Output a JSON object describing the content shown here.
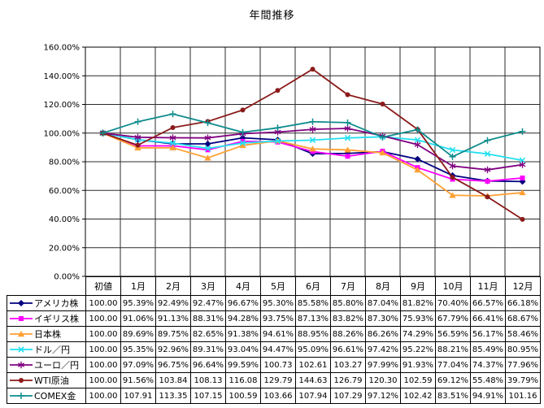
{
  "chart_data": {
    "type": "line",
    "title": "年間推移",
    "xlabel": "",
    "ylabel": "",
    "grid": true,
    "legend_position": "data-table-left",
    "categories": [
      "初値",
      "1月",
      "2月",
      "3月",
      "4月",
      "5月",
      "6月",
      "7月",
      "8月",
      "9月",
      "10月",
      "11月",
      "12月"
    ],
    "y_axis": {
      "min": 0,
      "max": 160,
      "step": 20,
      "tick_labels": [
        "0.00%",
        "20.00%",
        "40.00%",
        "60.00%",
        "80.00%",
        "100.00%",
        "120.00%",
        "140.00%",
        "160.00%"
      ]
    },
    "series": [
      {
        "name": "アメリカ株",
        "color": "#000080",
        "marker": "diamond",
        "values": [
          100.0,
          95.39,
          92.49,
          92.47,
          96.67,
          95.3,
          85.58,
          85.8,
          87.04,
          81.82,
          70.4,
          66.57,
          66.18
        ],
        "display": [
          "100.00",
          "95.39%",
          "92.49%",
          "92.47%",
          "96.67%",
          "95.30%",
          "85.58%",
          "85.80%",
          "87.04%",
          "81.82%",
          "70.40%",
          "66.57%",
          "66.18%"
        ]
      },
      {
        "name": "イギリス株",
        "color": "#FF00FF",
        "marker": "square",
        "values": [
          100.0,
          91.06,
          91.13,
          88.31,
          94.28,
          93.75,
          87.13,
          83.82,
          87.3,
          75.93,
          67.79,
          66.41,
          68.67
        ],
        "display": [
          "100.00",
          "91.06%",
          "91.13%",
          "88.31%",
          "94.28%",
          "93.75%",
          "87.13%",
          "83.82%",
          "87.30%",
          "75.93%",
          "67.79%",
          "66.41%",
          "68.67%"
        ]
      },
      {
        "name": "日本株",
        "color": "#FFA033",
        "marker": "triangle",
        "values": [
          100.0,
          89.69,
          89.75,
          82.65,
          91.38,
          94.61,
          88.95,
          88.26,
          86.26,
          74.29,
          56.59,
          56.17,
          58.46
        ],
        "display": [
          "100.00",
          "89.69%",
          "89.75%",
          "82.65%",
          "91.38%",
          "94.61%",
          "88.95%",
          "88.26%",
          "86.26%",
          "74.29%",
          "56.59%",
          "56.17%",
          "58.46%"
        ]
      },
      {
        "name": "ドル／円",
        "color": "#22DFEF",
        "marker": "x",
        "values": [
          100.0,
          95.35,
          92.96,
          89.31,
          93.04,
          94.47,
          95.09,
          96.61,
          97.42,
          95.22,
          88.21,
          85.49,
          80.95
        ],
        "display": [
          "100.00",
          "95.35%",
          "92.96%",
          "89.31%",
          "93.04%",
          "94.47%",
          "95.09%",
          "96.61%",
          "97.42%",
          "95.22%",
          "88.21%",
          "85.49%",
          "80.95%"
        ]
      },
      {
        "name": "ユーロ／円",
        "color": "#800080",
        "marker": "asterisk",
        "values": [
          100.0,
          97.09,
          96.75,
          96.64,
          99.59,
          100.73,
          102.61,
          103.27,
          97.99,
          91.93,
          77.04,
          74.37,
          77.96
        ],
        "display": [
          "100.00",
          "97.09%",
          "96.75%",
          "96.64%",
          "99.59%",
          "100.73",
          "102.61",
          "103.27",
          "97.99%",
          "91.93%",
          "77.04%",
          "74.37%",
          "77.96%"
        ]
      },
      {
        "name": "WTI原油",
        "color": "#8B1A1A",
        "marker": "circle",
        "values": [
          100.0,
          91.56,
          103.84,
          108.13,
          116.08,
          129.79,
          144.63,
          126.79,
          120.3,
          102.59,
          69.12,
          55.48,
          39.79
        ],
        "display": [
          "100.00",
          "91.56%",
          "103.84",
          "108.13",
          "116.08",
          "129.79",
          "144.63",
          "126.79",
          "120.30",
          "102.59",
          "69.12%",
          "55.48%",
          "39.79%"
        ]
      },
      {
        "name": "COMEX金",
        "color": "#0E8C8C",
        "marker": "plus",
        "values": [
          100.0,
          107.91,
          113.35,
          107.15,
          100.59,
          103.66,
          107.94,
          107.29,
          97.12,
          102.42,
          83.51,
          94.91,
          101.16
        ],
        "display": [
          "100.00",
          "107.91",
          "113.35",
          "107.15",
          "100.59",
          "103.66",
          "107.94",
          "107.29",
          "97.12%",
          "102.42",
          "83.51%",
          "94.91%",
          "101.16"
        ]
      }
    ]
  },
  "style": {
    "grid_color": "#2b2b2b",
    "axis_color": "#000000",
    "background": "#ffffff",
    "line_width": 1.8
  }
}
